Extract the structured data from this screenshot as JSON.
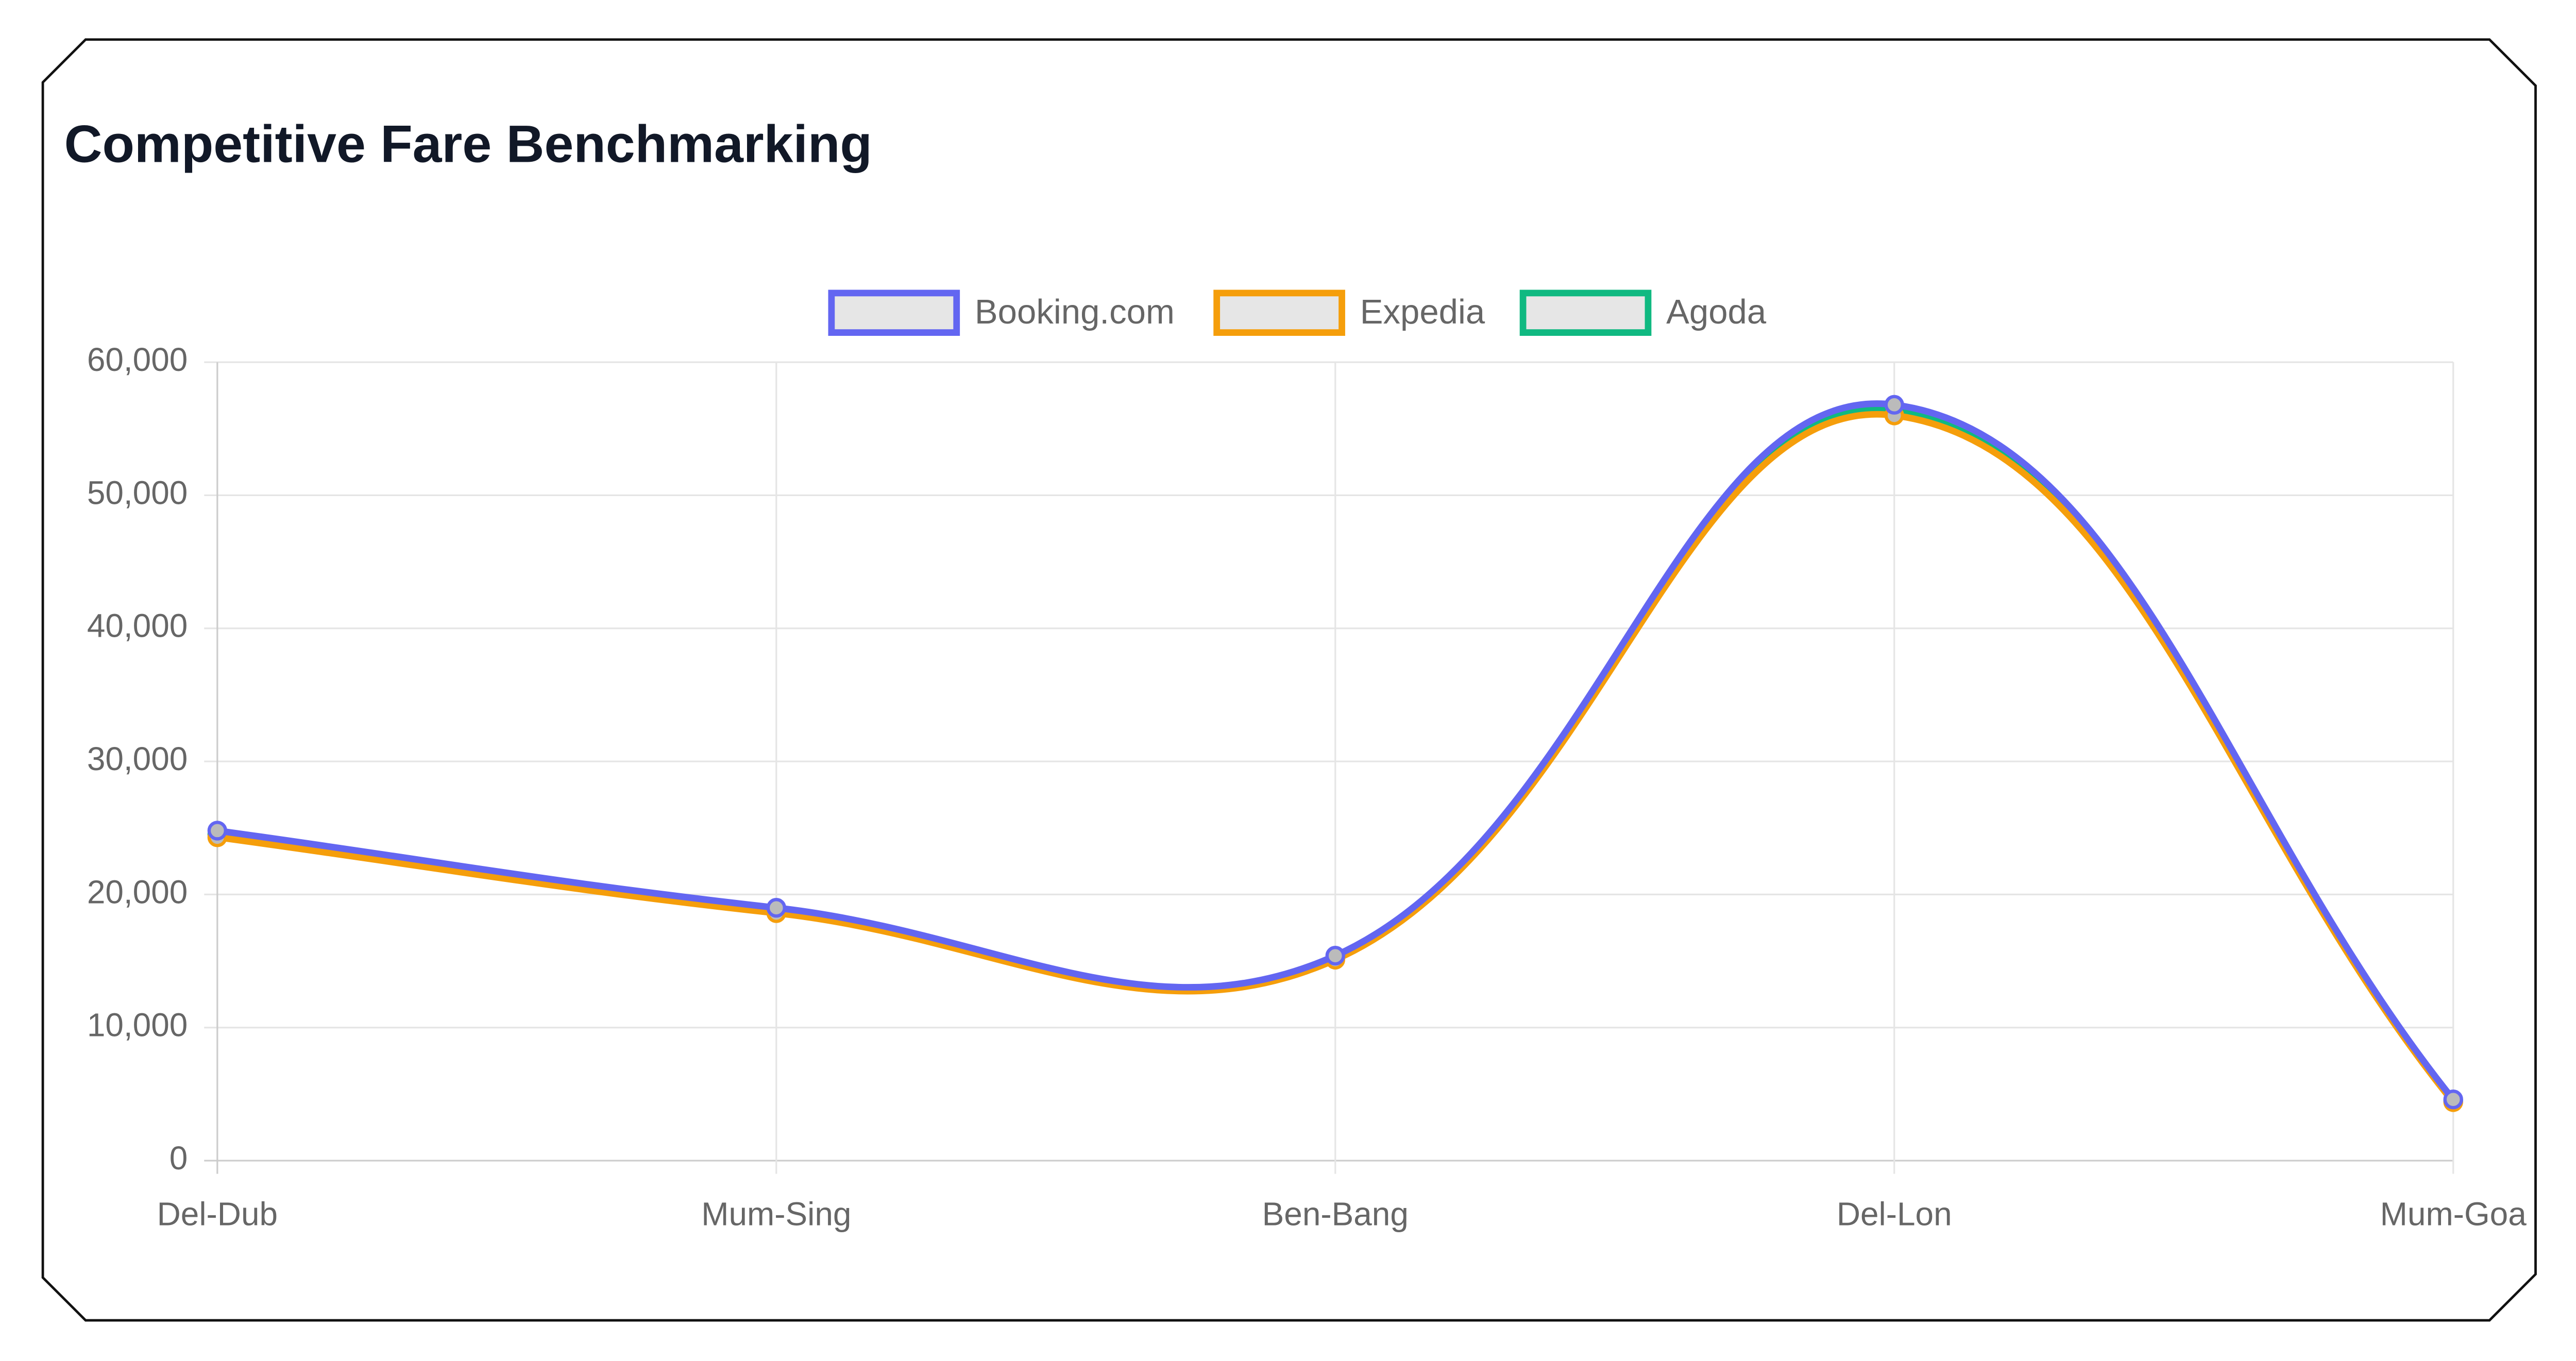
{
  "chart_data": {
    "type": "line",
    "title": "Competitive Fare Benchmarking",
    "categories": [
      "Del-Dub",
      "Mum-Sing",
      "Ben-Bang",
      "Del-Lon",
      "Mum-Goa"
    ],
    "series": [
      {
        "name": "Booking.com",
        "color": "#6366f1",
        "values": [
          24800,
          19000,
          15400,
          56800,
          4600
        ]
      },
      {
        "name": "Expedia",
        "color": "#f59e0b",
        "values": [
          24300,
          18600,
          15100,
          56000,
          4400
        ]
      },
      {
        "name": "Agoda",
        "color": "#10b981",
        "values": [
          24500,
          18800,
          15200,
          56400,
          4500
        ]
      }
    ],
    "ylim": [
      0,
      60000
    ],
    "yticks": [
      0,
      {
        "value": 10000,
        "label": "10,000"
      },
      {
        "value": 20000,
        "label": "20,000"
      },
      {
        "value": 30000,
        "label": "30,000"
      },
      {
        "value": 40000,
        "label": "40,000"
      },
      {
        "value": 50000,
        "label": "50,000"
      },
      {
        "value": 60000,
        "label": "60,000"
      }
    ],
    "grid": true,
    "legend": "top"
  }
}
